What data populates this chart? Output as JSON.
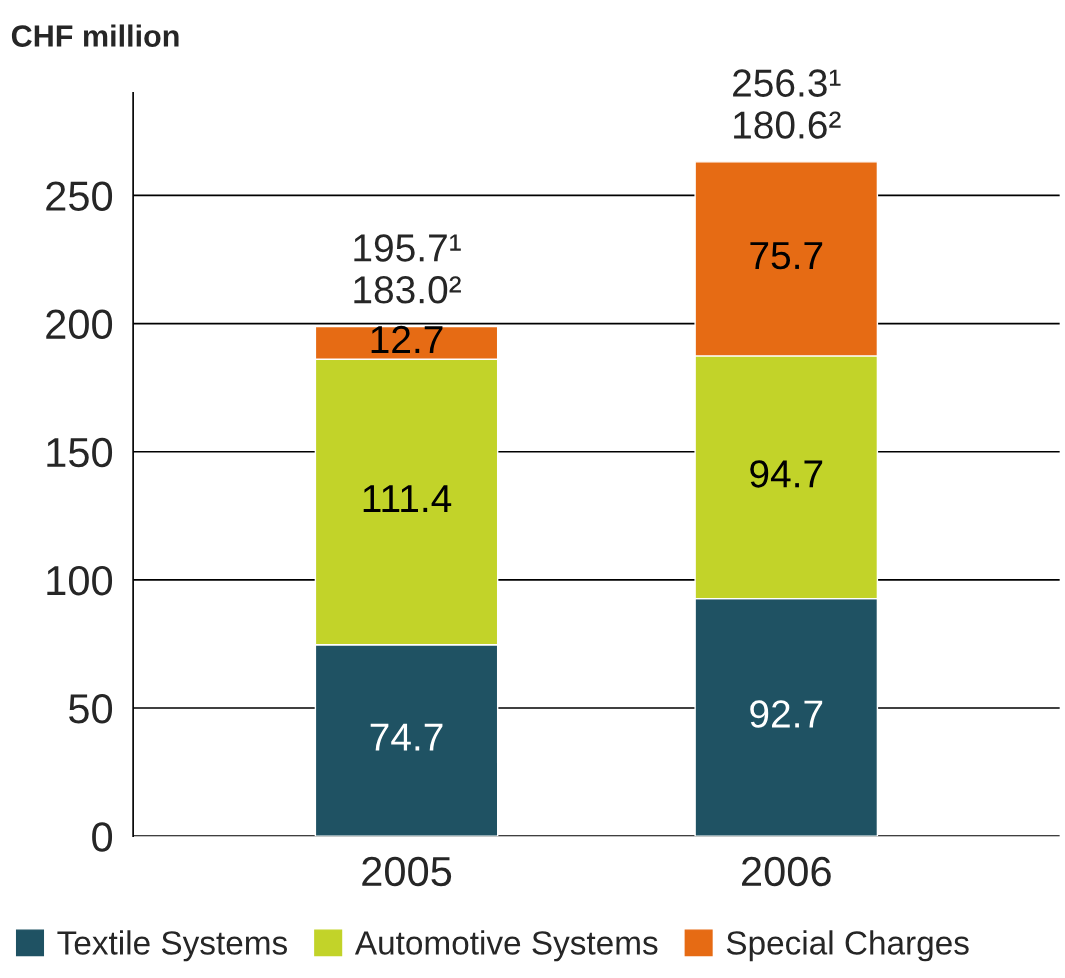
{
  "chart_data": {
    "type": "bar",
    "stacked": true,
    "ylabel": "CHF million",
    "categories": [
      "2005",
      "2006"
    ],
    "series": [
      {
        "name": "Textile Systems",
        "color": "#1f5263",
        "values": [
          74.7,
          92.7
        ]
      },
      {
        "name": "Automotive Systems",
        "color": "#c2d329",
        "values": [
          111.4,
          94.7
        ]
      },
      {
        "name": "Special Charges",
        "color": "#e66b14",
        "values": [
          12.7,
          75.7
        ]
      }
    ],
    "totals": [
      "195.7¹\n183.0²",
      "256.3¹\n180.6²"
    ],
    "data_labels": true,
    "ylim": [
      0,
      290
    ],
    "yticks": [
      0,
      50,
      100,
      150,
      200,
      250
    ],
    "grid": "y",
    "legend": "bottom"
  }
}
